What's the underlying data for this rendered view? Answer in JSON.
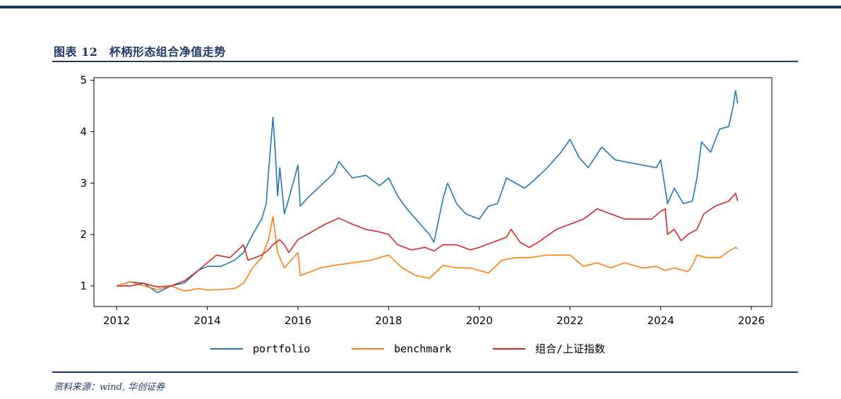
{
  "header": {
    "title": "图表 12　杯柄形态组合净值走势",
    "source": "资料来源：wind, 华创证券"
  },
  "chart_data": {
    "type": "line",
    "title": "",
    "xlabel": "",
    "ylabel": "",
    "xlim": [
      2011.5,
      2026.45
    ],
    "ylim": [
      0.6,
      5.05
    ],
    "xticks": [
      2012,
      2014,
      2016,
      2018,
      2020,
      2022,
      2024,
      2026
    ],
    "xtick_labels": [
      "2012",
      "2014",
      "2016",
      "2018",
      "2020",
      "2022",
      "2024",
      "2026"
    ],
    "yticks": [
      1,
      2,
      3,
      4,
      5
    ],
    "ytick_labels": [
      "1",
      "2",
      "3",
      "4",
      "5"
    ],
    "grid": false,
    "legend_position": "bottom",
    "series": [
      {
        "name": "portfolio",
        "color": "#1f77b4",
        "points": [
          [
            2012.0,
            1.0
          ],
          [
            2012.3,
            1.08
          ],
          [
            2012.6,
            1.05
          ],
          [
            2012.9,
            0.87
          ],
          [
            2013.2,
            1.0
          ],
          [
            2013.5,
            1.06
          ],
          [
            2013.8,
            1.3
          ],
          [
            2014.0,
            1.38
          ],
          [
            2014.3,
            1.38
          ],
          [
            2014.6,
            1.5
          ],
          [
            2014.8,
            1.65
          ],
          [
            2015.0,
            2.0
          ],
          [
            2015.2,
            2.3
          ],
          [
            2015.3,
            2.6
          ],
          [
            2015.35,
            3.2
          ],
          [
            2015.45,
            4.28
          ],
          [
            2015.5,
            3.6
          ],
          [
            2015.55,
            2.75
          ],
          [
            2015.6,
            3.3
          ],
          [
            2015.7,
            2.4
          ],
          [
            2015.8,
            2.7
          ],
          [
            2016.0,
            3.35
          ],
          [
            2016.05,
            2.55
          ],
          [
            2016.2,
            2.7
          ],
          [
            2016.5,
            2.95
          ],
          [
            2016.8,
            3.2
          ],
          [
            2016.9,
            3.42
          ],
          [
            2017.2,
            3.1
          ],
          [
            2017.5,
            3.15
          ],
          [
            2017.8,
            2.95
          ],
          [
            2018.0,
            3.1
          ],
          [
            2018.2,
            2.75
          ],
          [
            2018.4,
            2.5
          ],
          [
            2018.6,
            2.3
          ],
          [
            2018.9,
            2.0
          ],
          [
            2019.0,
            1.85
          ],
          [
            2019.2,
            2.7
          ],
          [
            2019.3,
            3.0
          ],
          [
            2019.5,
            2.6
          ],
          [
            2019.7,
            2.4
          ],
          [
            2020.0,
            2.3
          ],
          [
            2020.2,
            2.55
          ],
          [
            2020.4,
            2.6
          ],
          [
            2020.6,
            3.1
          ],
          [
            2020.8,
            3.0
          ],
          [
            2021.0,
            2.9
          ],
          [
            2021.2,
            3.05
          ],
          [
            2021.5,
            3.3
          ],
          [
            2021.8,
            3.6
          ],
          [
            2022.0,
            3.85
          ],
          [
            2022.2,
            3.5
          ],
          [
            2022.4,
            3.3
          ],
          [
            2022.7,
            3.7
          ],
          [
            2023.0,
            3.45
          ],
          [
            2023.3,
            3.4
          ],
          [
            2023.6,
            3.35
          ],
          [
            2023.9,
            3.3
          ],
          [
            2024.0,
            3.45
          ],
          [
            2024.15,
            2.6
          ],
          [
            2024.3,
            2.9
          ],
          [
            2024.5,
            2.6
          ],
          [
            2024.7,
            2.65
          ],
          [
            2024.8,
            3.1
          ],
          [
            2024.9,
            3.8
          ],
          [
            2025.1,
            3.6
          ],
          [
            2025.3,
            4.05
          ],
          [
            2025.5,
            4.1
          ],
          [
            2025.6,
            4.5
          ],
          [
            2025.65,
            4.8
          ],
          [
            2025.7,
            4.55
          ]
        ]
      },
      {
        "name": "benchmark",
        "color": "#ff7f0e",
        "points": [
          [
            2012.0,
            1.0
          ],
          [
            2012.3,
            1.08
          ],
          [
            2012.6,
            1.0
          ],
          [
            2012.9,
            0.93
          ],
          [
            2013.2,
            1.0
          ],
          [
            2013.5,
            0.9
          ],
          [
            2013.8,
            0.95
          ],
          [
            2014.0,
            0.92
          ],
          [
            2014.3,
            0.93
          ],
          [
            2014.6,
            0.95
          ],
          [
            2014.8,
            1.05
          ],
          [
            2015.0,
            1.35
          ],
          [
            2015.2,
            1.55
          ],
          [
            2015.35,
            1.9
          ],
          [
            2015.45,
            2.35
          ],
          [
            2015.55,
            1.65
          ],
          [
            2015.7,
            1.35
          ],
          [
            2016.0,
            1.65
          ],
          [
            2016.05,
            1.2
          ],
          [
            2016.5,
            1.35
          ],
          [
            2016.8,
            1.4
          ],
          [
            2017.2,
            1.45
          ],
          [
            2017.6,
            1.5
          ],
          [
            2018.0,
            1.6
          ],
          [
            2018.3,
            1.35
          ],
          [
            2018.6,
            1.2
          ],
          [
            2018.9,
            1.15
          ],
          [
            2019.2,
            1.4
          ],
          [
            2019.5,
            1.35
          ],
          [
            2019.8,
            1.35
          ],
          [
            2020.2,
            1.25
          ],
          [
            2020.5,
            1.5
          ],
          [
            2020.8,
            1.55
          ],
          [
            2021.1,
            1.55
          ],
          [
            2021.5,
            1.6
          ],
          [
            2022.0,
            1.6
          ],
          [
            2022.3,
            1.38
          ],
          [
            2022.6,
            1.45
          ],
          [
            2022.9,
            1.35
          ],
          [
            2023.2,
            1.45
          ],
          [
            2023.6,
            1.35
          ],
          [
            2023.9,
            1.38
          ],
          [
            2024.1,
            1.3
          ],
          [
            2024.3,
            1.35
          ],
          [
            2024.6,
            1.28
          ],
          [
            2024.7,
            1.4
          ],
          [
            2024.8,
            1.6
          ],
          [
            2025.0,
            1.55
          ],
          [
            2025.3,
            1.55
          ],
          [
            2025.55,
            1.7
          ],
          [
            2025.65,
            1.75
          ],
          [
            2025.7,
            1.72
          ]
        ]
      },
      {
        "name": "组合/上证指数",
        "color": "#d62728",
        "points": [
          [
            2012.0,
            1.0
          ],
          [
            2012.3,
            1.0
          ],
          [
            2012.6,
            1.05
          ],
          [
            2012.9,
            0.98
          ],
          [
            2013.2,
            1.0
          ],
          [
            2013.5,
            1.1
          ],
          [
            2013.8,
            1.3
          ],
          [
            2014.0,
            1.45
          ],
          [
            2014.2,
            1.6
          ],
          [
            2014.5,
            1.55
          ],
          [
            2014.8,
            1.8
          ],
          [
            2014.9,
            1.5
          ],
          [
            2015.2,
            1.6
          ],
          [
            2015.35,
            1.7
          ],
          [
            2015.45,
            1.8
          ],
          [
            2015.6,
            1.9
          ],
          [
            2015.7,
            1.8
          ],
          [
            2015.8,
            1.65
          ],
          [
            2016.0,
            1.9
          ],
          [
            2016.3,
            2.05
          ],
          [
            2016.6,
            2.2
          ],
          [
            2016.9,
            2.32
          ],
          [
            2017.2,
            2.2
          ],
          [
            2017.5,
            2.1
          ],
          [
            2017.8,
            2.05
          ],
          [
            2018.0,
            2.0
          ],
          [
            2018.2,
            1.8
          ],
          [
            2018.5,
            1.7
          ],
          [
            2018.8,
            1.75
          ],
          [
            2019.0,
            1.68
          ],
          [
            2019.2,
            1.8
          ],
          [
            2019.5,
            1.8
          ],
          [
            2019.8,
            1.7
          ],
          [
            2020.0,
            1.75
          ],
          [
            2020.3,
            1.85
          ],
          [
            2020.6,
            1.95
          ],
          [
            2020.7,
            2.1
          ],
          [
            2020.9,
            1.85
          ],
          [
            2021.1,
            1.75
          ],
          [
            2021.3,
            1.85
          ],
          [
            2021.7,
            2.1
          ],
          [
            2022.0,
            2.2
          ],
          [
            2022.3,
            2.3
          ],
          [
            2022.6,
            2.5
          ],
          [
            2022.9,
            2.4
          ],
          [
            2023.2,
            2.3
          ],
          [
            2023.5,
            2.3
          ],
          [
            2023.8,
            2.3
          ],
          [
            2024.0,
            2.45
          ],
          [
            2024.1,
            2.5
          ],
          [
            2024.15,
            2.0
          ],
          [
            2024.3,
            2.1
          ],
          [
            2024.45,
            1.88
          ],
          [
            2024.6,
            2.0
          ],
          [
            2024.8,
            2.1
          ],
          [
            2024.95,
            2.4
          ],
          [
            2025.2,
            2.55
          ],
          [
            2025.5,
            2.65
          ],
          [
            2025.65,
            2.8
          ],
          [
            2025.7,
            2.65
          ]
        ]
      }
    ]
  }
}
